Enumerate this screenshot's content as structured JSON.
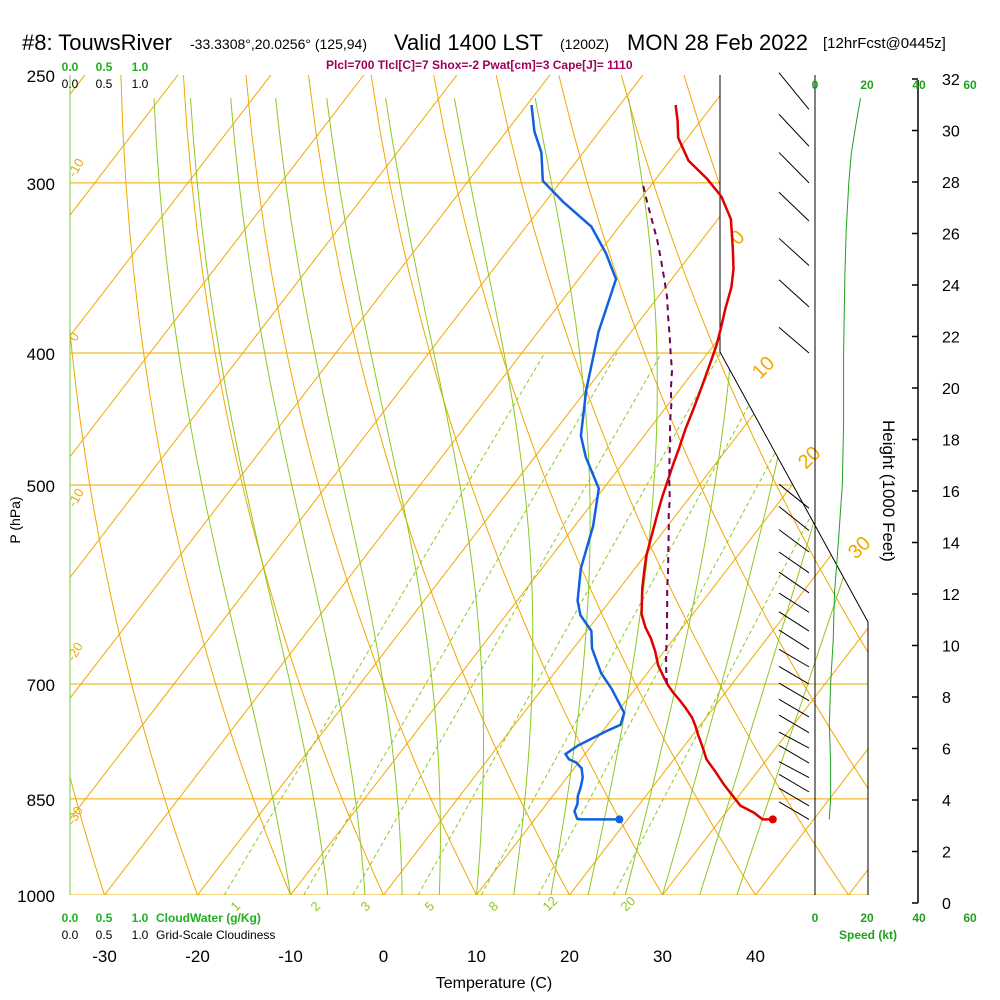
{
  "header": {
    "station": "#8: TouwsRiver",
    "coords": "-33.3308°,20.0256° (125,94)",
    "valid": "Valid 1400 LST",
    "zulu": "(1200Z)",
    "date": "MON 28 Feb 2022",
    "forecast": "[12hrFcst@0445z]"
  },
  "params_line": "Plcl=700 Tlcl[C]=7 Shox=-2 Pwat[cm]=3 Cape[J]= 1110",
  "cloud_scale": {
    "top_green": [
      "0.0",
      "0.5",
      "1.0"
    ],
    "top_black": [
      "0.0",
      "0.5",
      "1.0"
    ],
    "bottom_green": [
      "0.0",
      "0.5",
      "1.0"
    ],
    "bottom_black": [
      "0.0",
      "0.5",
      "1.0"
    ],
    "cloudwater_label": "CloudWater (g/Kg)",
    "cloudiness_label": "Grid-Scale Cloudiness"
  },
  "speed_scale": {
    "ticks": [
      "0",
      "20",
      "40",
      "60"
    ],
    "label": "Speed (kt)"
  },
  "colors": {
    "isotherm": "#f0a800",
    "mixing_ratio": "#8cc820",
    "temperature": "#e00000",
    "dewpoint": "#1060e0",
    "parcel": "#70005a",
    "speed": "#20a020"
  },
  "chart_data": {
    "type": "line",
    "subtype": "skew-t log-p sounding",
    "title": "#8: TouwsRiver  Valid 1400 LST (1200Z) MON 28 Feb 2022 [12hrFcst@0445z]",
    "xlabel": "Temperature (C)",
    "ylabel": "P (hPa)",
    "y2label": "Height (1000 Feet)",
    "x_ticks": [
      -30,
      -20,
      -10,
      0,
      10,
      20,
      30,
      40
    ],
    "p_ticks": [
      250,
      300,
      400,
      500,
      700,
      850,
      1000
    ],
    "height_ticks": [
      0,
      2,
      4,
      6,
      8,
      10,
      12,
      14,
      16,
      18,
      20,
      22,
      24,
      26,
      28,
      30,
      32
    ],
    "xlim": [
      -35,
      45
    ],
    "plim": [
      1000,
      250
    ],
    "isotherm_labels": [
      "-10",
      "0",
      "-10",
      "-20",
      "-30",
      "0",
      "10",
      "20",
      "30"
    ],
    "mixing_ratio_labels": [
      "1",
      "2",
      "3",
      "5",
      "8",
      "12",
      "20"
    ],
    "series": [
      {
        "name": "Temperature",
        "points": [
          [
            35.6,
            880
          ],
          [
            34.5,
            880
          ],
          [
            33,
            870
          ],
          [
            31,
            860
          ],
          [
            29.5,
            847
          ],
          [
            27.5,
            830
          ],
          [
            25.5,
            812
          ],
          [
            23.5,
            795
          ],
          [
            22,
            778
          ],
          [
            20.5,
            762
          ],
          [
            19.5,
            751
          ],
          [
            18.5,
            741
          ],
          [
            17,
            729
          ],
          [
            15.8,
            720
          ],
          [
            14.5,
            711
          ],
          [
            13.3,
            702
          ],
          [
            12,
            691
          ],
          [
            10.5,
            678
          ],
          [
            9,
            662
          ],
          [
            7.5,
            648
          ],
          [
            6,
            636
          ],
          [
            4.5,
            622
          ],
          [
            3.5,
            609
          ],
          [
            2.4,
            595
          ],
          [
            1.2,
            578
          ],
          [
            0.2,
            564
          ],
          [
            -1.2,
            540
          ],
          [
            -2.1,
            525
          ],
          [
            -3,
            510
          ],
          [
            -3.7,
            497
          ],
          [
            -4.5,
            483
          ],
          [
            -5.2,
            470
          ],
          [
            -6.1,
            455
          ],
          [
            -6.9,
            440
          ],
          [
            -7.7,
            426
          ],
          [
            -8.7,
            410
          ],
          [
            -9.7,
            395
          ],
          [
            -10.7,
            383
          ],
          [
            -11.8,
            371
          ],
          [
            -12.9,
            358
          ],
          [
            -14.2,
            347
          ],
          [
            -16,
            335
          ],
          [
            -18.6,
            319
          ],
          [
            -21.5,
            307
          ],
          [
            -24.5,
            298
          ],
          [
            -28,
            289
          ],
          [
            -31,
            278
          ],
          [
            -32.5,
            270
          ],
          [
            -34,
            263
          ]
        ]
      },
      {
        "name": "Dewpoint",
        "points": [
          [
            19.1,
            880
          ],
          [
            14.9,
            880
          ],
          [
            14.5,
            879
          ],
          [
            13.6,
            868
          ],
          [
            13.3,
            857
          ],
          [
            12.7,
            846
          ],
          [
            12.3,
            834
          ],
          [
            11.7,
            820
          ],
          [
            10.8,
            807
          ],
          [
            9.7,
            799
          ],
          [
            8.7,
            795
          ],
          [
            7.9,
            788
          ],
          [
            8.5,
            777
          ],
          [
            9.5,
            767
          ],
          [
            10.4,
            758
          ],
          [
            11.4,
            750
          ],
          [
            10.8,
            735
          ],
          [
            7.5,
            706
          ],
          [
            5,
            687
          ],
          [
            2,
            659
          ],
          [
            0.5,
            640
          ],
          [
            -2,
            623
          ],
          [
            -3.5,
            608
          ],
          [
            -5.8,
            576
          ],
          [
            -8,
            536
          ],
          [
            -10.5,
            503
          ],
          [
            -14.5,
            477
          ],
          [
            -16.8,
            460
          ],
          [
            -20,
            426
          ],
          [
            -23.5,
            386
          ],
          [
            -26,
            353
          ],
          [
            -29.2,
            338
          ],
          [
            -33,
            323
          ],
          [
            -38,
            310
          ],
          [
            -42,
            299
          ],
          [
            -44.5,
            285
          ],
          [
            -47,
            275
          ],
          [
            -49.5,
            263
          ]
        ]
      },
      {
        "name": "Parcel",
        "points": [
          [
            13,
            700
          ],
          [
            11.5,
            680
          ],
          [
            10.2,
            662
          ],
          [
            9,
            645
          ],
          [
            7.7,
            628
          ],
          [
            6.3,
            610
          ],
          [
            5,
            594
          ],
          [
            4,
            581
          ],
          [
            3,
            569
          ],
          [
            1.8,
            555
          ],
          [
            0.5,
            540
          ],
          [
            -0.8,
            526
          ],
          [
            -2,
            512
          ],
          [
            -3.2,
            500
          ],
          [
            -4.4,
            488
          ],
          [
            -5.7,
            475
          ],
          [
            -7,
            462
          ],
          [
            -8.3,
            450
          ],
          [
            -9.6,
            437
          ],
          [
            -11,
            425
          ],
          [
            -12.4,
            412
          ],
          [
            -14,
            400
          ],
          [
            -15.6,
            388
          ],
          [
            -17.3,
            376
          ],
          [
            -19,
            364
          ],
          [
            -20.8,
            353
          ],
          [
            -22.7,
            342
          ],
          [
            -24.7,
            331
          ],
          [
            -26.7,
            321
          ],
          [
            -28.8,
            311
          ],
          [
            -30.9,
            301
          ]
        ]
      }
    ],
    "wind_speed_kt": [
      [
        5.5,
        880
      ],
      [
        6,
        850
      ],
      [
        6,
        800
      ],
      [
        5.5,
        750
      ],
      [
        6,
        700
      ],
      [
        7,
        650
      ],
      [
        7.5,
        600
      ],
      [
        9,
        550
      ],
      [
        10.5,
        500
      ],
      [
        11,
        450
      ],
      [
        11,
        400
      ],
      [
        11.5,
        350
      ],
      [
        12,
        325
      ],
      [
        13,
        300
      ],
      [
        14,
        285
      ],
      [
        16,
        270
      ],
      [
        17.5,
        260
      ]
    ],
    "wind_barbs": [
      [
        880,
        6
      ],
      [
        860,
        6
      ],
      [
        840,
        6
      ],
      [
        820,
        5
      ],
      [
        800,
        6
      ],
      [
        780,
        5
      ],
      [
        760,
        6
      ],
      [
        740,
        6
      ],
      [
        720,
        6
      ],
      [
        700,
        6
      ],
      [
        680,
        6
      ],
      [
        660,
        7
      ],
      [
        640,
        7
      ],
      [
        620,
        7
      ],
      [
        600,
        8
      ],
      [
        580,
        8
      ],
      [
        560,
        9
      ],
      [
        540,
        10
      ],
      [
        520,
        10
      ],
      [
        400,
        11
      ],
      [
        370,
        12
      ],
      [
        345,
        12
      ],
      [
        320,
        13
      ],
      [
        300,
        14
      ],
      [
        282,
        15
      ],
      [
        265,
        18
      ]
    ]
  }
}
